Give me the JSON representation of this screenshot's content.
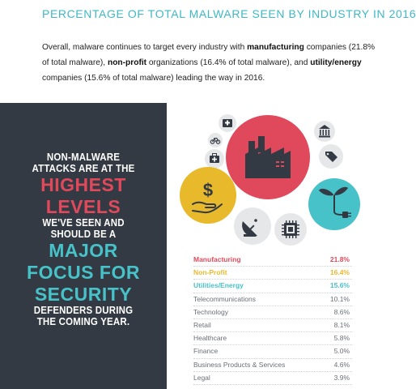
{
  "header": {
    "title": "PERCENTAGE OF TOTAL MALWARE SEEN BY INDUSTRY IN 2016",
    "intro": [
      {
        "text": "Overall, malware continues to target every industry with ",
        "bold": false
      },
      {
        "text": "manufacturing",
        "bold": true
      },
      {
        "text": " companies (21.8% of total malware), ",
        "bold": false
      },
      {
        "text": "non-profit",
        "bold": true
      },
      {
        "text": " organizations (16.4% of total malware), and ",
        "bold": false
      },
      {
        "text": "utility/energy",
        "bold": true
      },
      {
        "text": " companies (15.6% of total malware) leading the way in 2016.",
        "bold": false
      }
    ]
  },
  "panel": {
    "lines": [
      {
        "text": "NON-MALWARE",
        "style": "w"
      },
      {
        "text": "ATTACKS ARE AT THE",
        "style": "w"
      },
      {
        "text": "HIGHEST",
        "style": "r"
      },
      {
        "text": "LEVELS",
        "style": "r"
      },
      {
        "text": "WE'VE SEEN AND",
        "style": "w"
      },
      {
        "text": "SHOULD BE A",
        "style": "w"
      },
      {
        "text": "MAJOR",
        "style": "t"
      },
      {
        "text": "FOCUS FOR",
        "style": "t"
      },
      {
        "text": "SECURITY",
        "style": "t"
      },
      {
        "text": "DEFENDERS DURING",
        "style": "w"
      },
      {
        "text": "THE COMING YEAR.",
        "style": "w"
      }
    ]
  },
  "colors": {
    "manufacturing": "#e0495b",
    "nonprofit": "#e8b92a",
    "utilities": "#46c2c8",
    "other": "#e6e7e9",
    "muted_text": "#6b7078",
    "panel_bg": "#333a43"
  },
  "bubble_icons": [
    "factory-icon",
    "money-hand-icon",
    "plant-plug-icon",
    "satellite-dish-icon",
    "microchip-icon",
    "bank-icon",
    "price-tag-icon",
    "medical-kit-icon",
    "bicycle-icon",
    "hospital-icon"
  ],
  "chart_data": {
    "type": "table",
    "title": "PERCENTAGE OF TOTAL MALWARE SEEN BY INDUSTRY IN 2016",
    "categories": [
      "Manufacturing",
      "Non-Profit",
      "Utilities/Energy",
      "Telecommunications",
      "Technology",
      "Retail",
      "Healthcare",
      "Finance",
      "Business Products & Services",
      "Legal"
    ],
    "values": [
      21.8,
      16.4,
      15.6,
      10.1,
      8.6,
      8.1,
      5.8,
      5.0,
      4.6,
      3.9
    ],
    "labels": [
      "21.8%",
      "16.4%",
      "15.6%",
      "10.1%",
      "8.6%",
      "8.1%",
      "5.8%",
      "5.0%",
      "4.6%",
      "3.9%"
    ],
    "highlight_colors": [
      "#e0495b",
      "#e8b92a",
      "#46c2c8",
      null,
      null,
      null,
      null,
      null,
      null,
      null
    ]
  }
}
